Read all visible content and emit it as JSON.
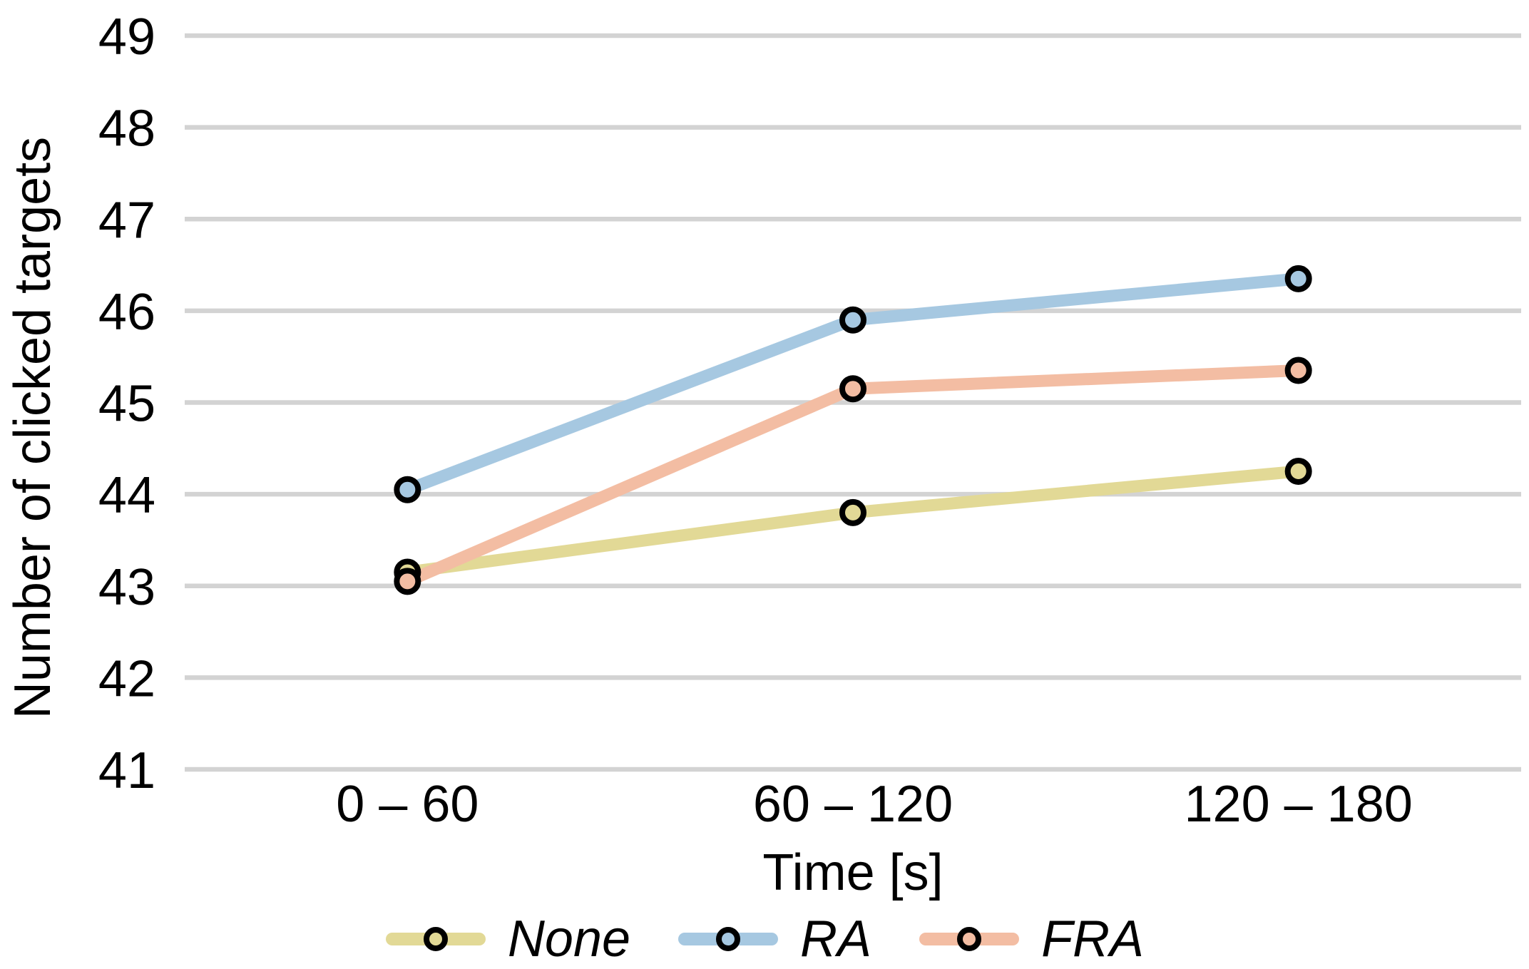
{
  "chart_data": {
    "type": "line",
    "title": "",
    "categories": [
      "0 – 60",
      "60 – 120",
      "120 – 180"
    ],
    "series": [
      {
        "name": "None",
        "color": "#e2d996",
        "values": [
          43.15,
          43.8,
          44.25
        ]
      },
      {
        "name": "RA",
        "color": "#a6c8e1",
        "values": [
          44.05,
          45.9,
          46.35
        ]
      },
      {
        "name": "FRA",
        "color": "#f3bda3",
        "values": [
          43.05,
          45.15,
          45.35
        ]
      }
    ],
    "xlabel": "Time [s]",
    "ylabel": "Number of clicked targets",
    "ylim": [
      41,
      49
    ],
    "yticks": [
      41,
      42,
      43,
      44,
      45,
      46,
      47,
      48,
      49
    ],
    "grid": "horizontal-only",
    "gridline_color": "#d3d3d3",
    "marker_stroke_color": "#000000",
    "text_color": "#000000",
    "background_color": "#ffffff",
    "legend_position": "bottom",
    "legend_style": "italic"
  }
}
